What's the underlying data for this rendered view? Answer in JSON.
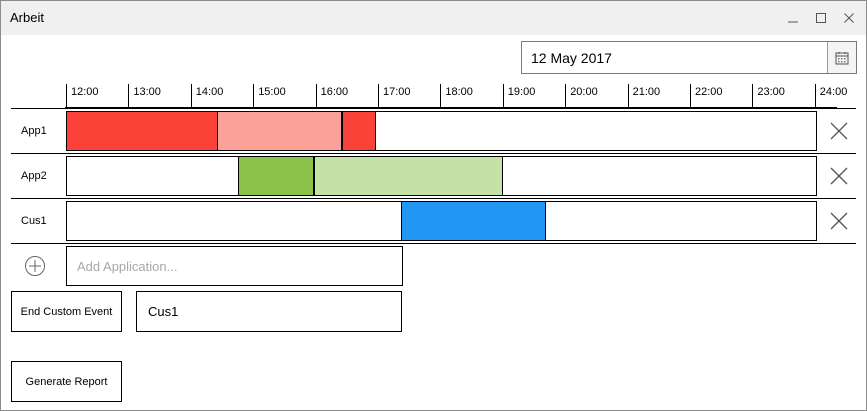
{
  "window": {
    "title": "Arbeit",
    "controls": [
      "minimize",
      "maximize",
      "close"
    ]
  },
  "date_picker": {
    "value": "12 May 2017",
    "icon": "calendar-icon"
  },
  "timeline": {
    "hours": [
      "12:00",
      "13:00",
      "14:00",
      "15:00",
      "16:00",
      "17:00",
      "18:00",
      "19:00",
      "20:00",
      "21:00",
      "22:00",
      "23:00",
      "24:00"
    ],
    "rows": [
      {
        "label": "App1",
        "segments": [
          {
            "start": "12:00",
            "end": "14:25",
            "color": "#fa4238"
          },
          {
            "start": "14:25",
            "end": "16:25",
            "color": "#fba19a"
          },
          {
            "start": "16:25",
            "end": "16:58",
            "color": "#fa4238"
          }
        ]
      },
      {
        "label": "App2",
        "segments": [
          {
            "start": "14:45",
            "end": "15:58",
            "color": "#8bc34a"
          },
          {
            "start": "15:58",
            "end": "19:00",
            "color": "#c5e1a5"
          }
        ]
      },
      {
        "label": "Cus1",
        "segments": [
          {
            "start": "17:22",
            "end": "19:42",
            "color": "#2196f3"
          }
        ]
      }
    ]
  },
  "add_application": {
    "placeholder": "Add Application..."
  },
  "custom_event": {
    "button_label": "End Custom Event",
    "value": "Cus1"
  },
  "report": {
    "button_label": "Generate Report"
  }
}
